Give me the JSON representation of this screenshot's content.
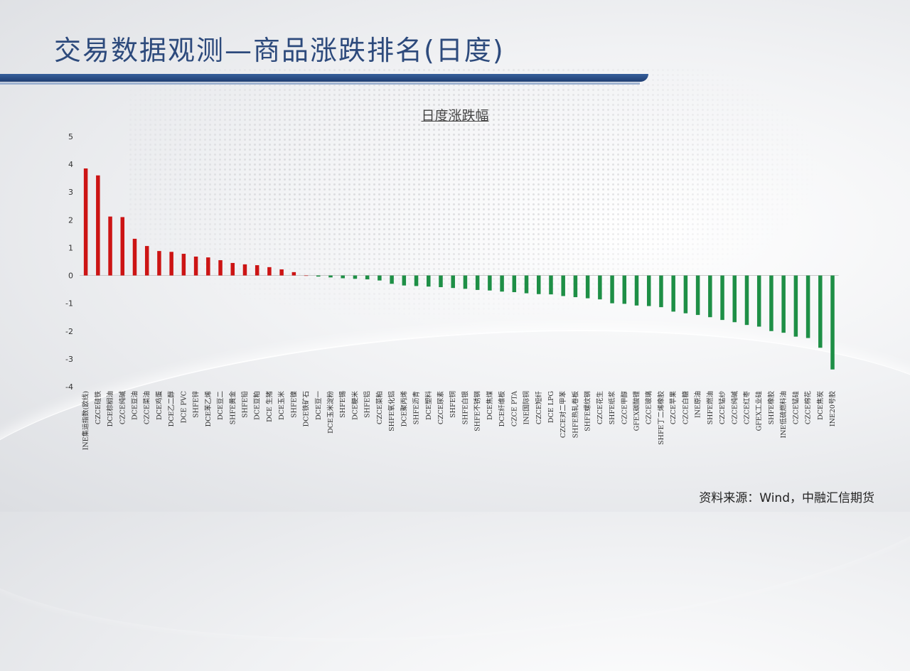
{
  "page": {
    "title": "交易数据观测—商品涨跌排名(日度)",
    "source": "资料来源：Wind，中融汇信期货"
  },
  "colors": {
    "up": "#cc1414",
    "down": "#1e8f46",
    "title": "#2d4a7c",
    "bar": "#2a4b82"
  },
  "chart_data": {
    "type": "bar",
    "title": "日度涨跌幅",
    "ylim": [
      -4,
      5
    ],
    "yticks": [
      5,
      4,
      3,
      2,
      1,
      0,
      -1,
      -2,
      -3,
      -4
    ],
    "grid": false,
    "categories": [
      "INE集运指数(欧线)",
      "CZCE硅铁",
      "DCE棕榈油",
      "CZCE纯碱",
      "DCE豆油",
      "CZCE菜油",
      "DCE鸡蛋",
      "DCE乙二醇",
      "DCE PVC",
      "SHFE锌",
      "DCE苯乙烯",
      "DCE豆二",
      "SHFE黄金",
      "SHFE铅",
      "DCE豆粕",
      "DCE 生猪",
      "DCE玉米",
      "SHFE镍",
      "DCE铁矿石",
      "DCE豆一",
      "DCE玉米淀粉",
      "SHFE锡",
      "DCE粳米",
      "SHFE铝",
      "CZCE菜粕",
      "SHFE氧化铝",
      "DCE聚丙烯",
      "SHFE沥青",
      "DCE塑料",
      "CZCE尿素",
      "SHFE铜",
      "SHFE白银",
      "SHFE不锈钢",
      "DCE焦煤",
      "DCE纤维板",
      "CZCE PTA",
      "INE国际铜",
      "CZCE短纤",
      "DCE LPG",
      "CZCE对二甲苯",
      "SHFE热轧卷板",
      "SHFE螺纹钢",
      "CZCE花生",
      "SHFE纸浆",
      "CZCE甲醇",
      "GFEX碳酸锂",
      "CZCE玻璃",
      "SHFE丁二烯橡胶",
      "CZCE苹果",
      "CZCE白糖",
      "INE原油",
      "SHFE燃油",
      "CZCE锰纱",
      "CZCE纯碱",
      "CZCE红枣",
      "GFEX工业硅",
      "SHFE橡胶",
      "INE低硫燃料油",
      "CZCE锰硅",
      "CZCE棉花",
      "DCE焦炭",
      "INE20号胶"
    ],
    "values": [
      3.85,
      3.6,
      2.12,
      2.1,
      1.32,
      1.06,
      0.88,
      0.85,
      0.78,
      0.68,
      0.65,
      0.55,
      0.45,
      0.4,
      0.37,
      0.3,
      0.22,
      0.12,
      0,
      -0.04,
      -0.07,
      -0.1,
      -0.12,
      -0.14,
      -0.18,
      -0.3,
      -0.36,
      -0.38,
      -0.4,
      -0.42,
      -0.45,
      -0.48,
      -0.52,
      -0.54,
      -0.58,
      -0.6,
      -0.64,
      -0.67,
      -0.68,
      -0.74,
      -0.78,
      -0.82,
      -0.86,
      -1.0,
      -1.02,
      -1.08,
      -1.1,
      -1.14,
      -1.3,
      -1.36,
      -1.42,
      -1.5,
      -1.6,
      -1.68,
      -1.78,
      -1.84,
      -2.0,
      -2.06,
      -2.2,
      -2.25,
      -2.6,
      -3.38
    ]
  }
}
